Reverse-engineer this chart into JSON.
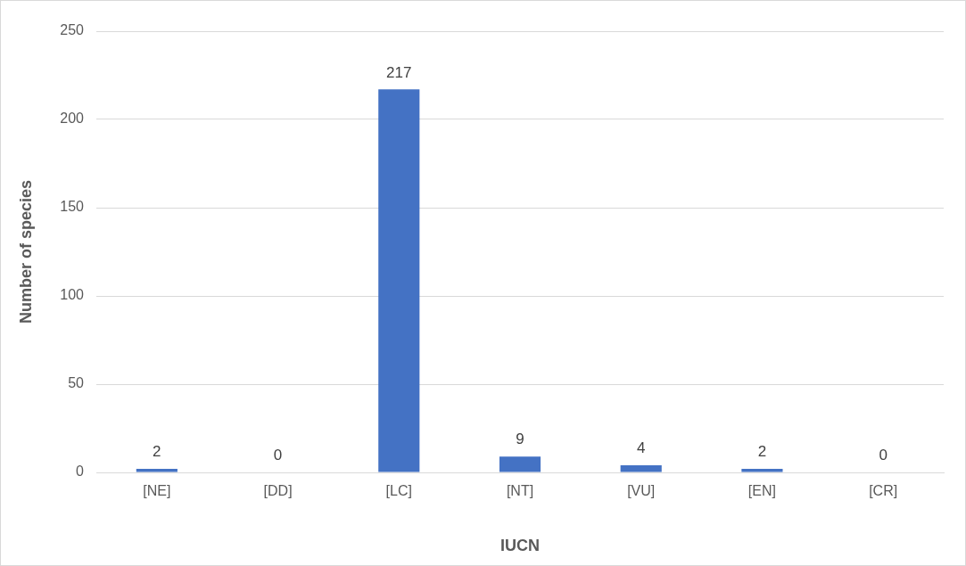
{
  "chart_data": {
    "type": "bar",
    "xlabel": "IUCN",
    "ylabel": "Number of species",
    "categories": [
      "[NE]",
      "[DD]",
      "[LC]",
      "[NT]",
      "[VU]",
      "[EN]",
      "[CR]"
    ],
    "values": [
      2,
      0,
      217,
      9,
      4,
      2,
      0
    ],
    "color": "#4472c4",
    "ylim": [
      0,
      250
    ],
    "yticks": [
      0,
      50,
      100,
      150,
      200,
      250
    ],
    "grid": "y",
    "data_labels": true,
    "legend": false
  }
}
